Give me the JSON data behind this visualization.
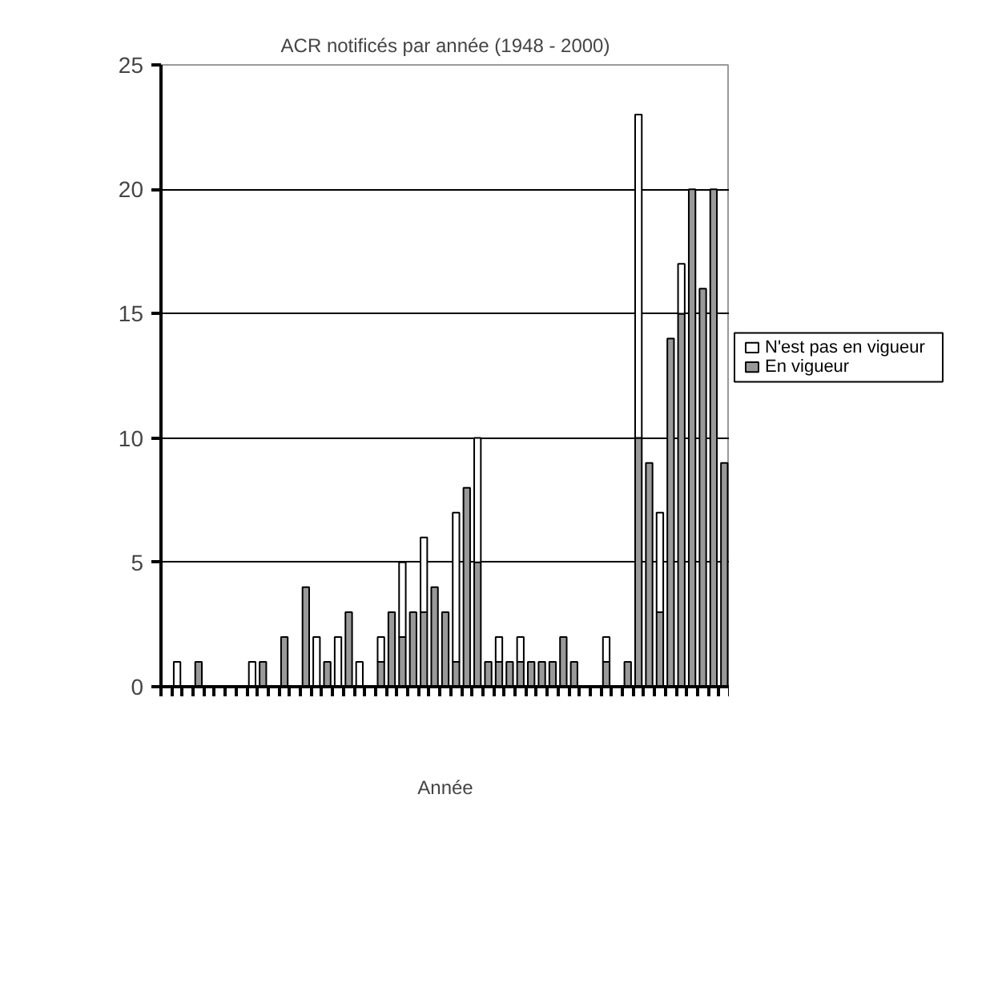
{
  "chart_data": {
    "type": "bar",
    "title": "ACR notificés par année (1948 - 2000)",
    "xlabel": "Année",
    "stacked": true,
    "categories": [
      null,
      null,
      null,
      null,
      null,
      null,
      null,
      null,
      null,
      null,
      null,
      null,
      null,
      null,
      null,
      null,
      null,
      null,
      null,
      null,
      null,
      null,
      null,
      null,
      null,
      null,
      null,
      null,
      null,
      null,
      null,
      null,
      null,
      null,
      null,
      null,
      null,
      null,
      null,
      null,
      null,
      null,
      null,
      null,
      null,
      null,
      null,
      null,
      null,
      null,
      null,
      null,
      null
    ],
    "series": [
      {
        "name": "En vigueur",
        "color": "#999999",
        "values": [
          0,
          0,
          0,
          1,
          0,
          0,
          0,
          0,
          0,
          1,
          0,
          2,
          0,
          4,
          0,
          1,
          0,
          3,
          0,
          0,
          1,
          3,
          2,
          3,
          3,
          4,
          3,
          1,
          8,
          5,
          1,
          1,
          1,
          1,
          1,
          1,
          1,
          2,
          1,
          0,
          0,
          1,
          0,
          1,
          10,
          9,
          3,
          14,
          15,
          20,
          16,
          20,
          9
        ]
      },
      {
        "name": "N'est pas en vigueur",
        "color": "#ffffff",
        "values": [
          0,
          1,
          0,
          0,
          0,
          0,
          0,
          0,
          1,
          0,
          0,
          0,
          0,
          0,
          2,
          0,
          2,
          0,
          1,
          0,
          1,
          0,
          3,
          0,
          3,
          0,
          0,
          6,
          0,
          5,
          0,
          1,
          0,
          1,
          0,
          0,
          0,
          0,
          0,
          0,
          0,
          1,
          0,
          0,
          13,
          0,
          4,
          0,
          2,
          0,
          0,
          0,
          0
        ]
      }
    ],
    "ylim": [
      0,
      25
    ],
    "yticks": [
      0,
      5,
      10,
      15,
      20,
      25
    ],
    "grid": "y",
    "legend": "right",
    "tick_labels": "y"
  }
}
